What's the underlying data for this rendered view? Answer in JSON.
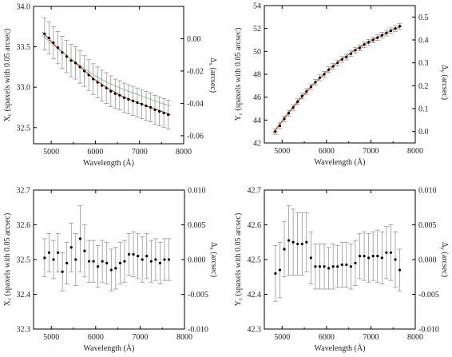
{
  "chart_data": [
    {
      "type": "scatter",
      "xlabel": "Wavelength (Å)",
      "ylabel": "Xc (spaxels with 0.05 arcsec)",
      "ylabel_main": "X",
      "ylabel_sub": "c",
      "ylabel_rest": " (spaxels with 0.05 arcsec)",
      "y2label": "Δx (arcsec)",
      "y2label_main": "Δ",
      "y2label_sub": "x",
      "y2label_rest": " (arcsec)",
      "xlim": [
        4600,
        8000
      ],
      "ylim": [
        32.3,
        34.0
      ],
      "y2lim": [
        -0.065,
        0.02
      ],
      "xticks": [
        5000,
        6000,
        7000,
        8000
      ],
      "yticks": [
        32.5,
        33.0,
        33.5,
        34.0
      ],
      "y2ticks": [
        -0.06,
        -0.04,
        -0.02,
        0.0
      ],
      "series": [
        {
          "style": "points",
          "x": [
            4850,
            4950,
            5050,
            5150,
            5250,
            5350,
            5450,
            5550,
            5650,
            5750,
            5850,
            5950,
            6050,
            6150,
            6250,
            6350,
            6450,
            6550,
            6650,
            6750,
            6850,
            6950,
            7050,
            7150,
            7250,
            7350,
            7450,
            7550,
            7650
          ],
          "y": [
            33.66,
            33.61,
            33.55,
            33.49,
            33.43,
            33.38,
            33.33,
            33.3,
            33.25,
            33.2,
            33.15,
            33.1,
            33.06,
            33.02,
            32.99,
            32.95,
            32.92,
            32.9,
            32.87,
            32.85,
            32.83,
            32.81,
            32.79,
            32.77,
            32.75,
            32.72,
            32.7,
            32.68,
            32.66
          ],
          "yerr": [
            0.2,
            0.2,
            0.2,
            0.2,
            0.2,
            0.2,
            0.2,
            0.2,
            0.2,
            0.19,
            0.19,
            0.19,
            0.19,
            0.19,
            0.19,
            0.19,
            0.18,
            0.18,
            0.18,
            0.18,
            0.18,
            0.18,
            0.18,
            0.18,
            0.18,
            0.18,
            0.18,
            0.18,
            0.18
          ]
        },
        {
          "style": "line",
          "color": "#cc2222",
          "x": [
            4800,
            5100,
            5400,
            5700,
            6000,
            6300,
            6600,
            6900,
            7200,
            7500,
            7700
          ],
          "y": [
            33.68,
            33.51,
            33.37,
            33.23,
            33.09,
            32.98,
            32.89,
            32.82,
            32.76,
            32.7,
            32.66
          ]
        },
        {
          "style": "line",
          "color": "#88cc88",
          "x": [
            4800,
            5100,
            5400,
            5700,
            6000,
            6300,
            6600,
            6900,
            7200,
            7500,
            7700
          ],
          "y": [
            33.64,
            33.5,
            33.37,
            33.25,
            33.14,
            33.05,
            32.98,
            32.92,
            32.86,
            32.8,
            32.77
          ]
        }
      ]
    },
    {
      "type": "scatter",
      "xlabel": "Wavelength (Å)",
      "ylabel": "Yc (spaxels with 0.05 arcsec)",
      "ylabel_main": "Y",
      "ylabel_sub": "c",
      "ylabel_rest": " (spaxels with 0.05 arcsec)",
      "y2label": "Δy (arcsec)",
      "y2label_main": "Δ",
      "y2label_sub": "y",
      "y2label_rest": " (arcsec)",
      "xlim": [
        4600,
        8000
      ],
      "ylim": [
        42.0,
        54.0
      ],
      "y2lim": [
        -0.05,
        0.55
      ],
      "xticks": [
        5000,
        6000,
        7000,
        8000
      ],
      "yticks": [
        42,
        44,
        46,
        48,
        50,
        52,
        54
      ],
      "y2ticks": [
        0.0,
        0.1,
        0.2,
        0.3,
        0.4,
        0.5
      ],
      "series": [
        {
          "style": "points",
          "x": [
            4850,
            4950,
            5050,
            5150,
            5250,
            5350,
            5450,
            5550,
            5650,
            5750,
            5850,
            5950,
            6050,
            6150,
            6250,
            6350,
            6450,
            6550,
            6650,
            6750,
            6850,
            6950,
            7050,
            7150,
            7250,
            7350,
            7450,
            7550,
            7650
          ],
          "y": [
            43.0,
            43.5,
            44.1,
            44.6,
            45.1,
            45.6,
            46.1,
            46.5,
            46.9,
            47.3,
            47.7,
            48.0,
            48.4,
            48.7,
            49.0,
            49.3,
            49.5,
            49.8,
            50.1,
            50.3,
            50.6,
            50.8,
            51.0,
            51.2,
            51.4,
            51.6,
            51.8,
            52.0,
            52.2
          ],
          "yerr": [
            0.25,
            0.25,
            0.25,
            0.25,
            0.25,
            0.25,
            0.25,
            0.25,
            0.25,
            0.25,
            0.25,
            0.25,
            0.25,
            0.25,
            0.25,
            0.25,
            0.25,
            0.25,
            0.25,
            0.25,
            0.25,
            0.25,
            0.25,
            0.25,
            0.25,
            0.25,
            0.25,
            0.25,
            0.25
          ]
        },
        {
          "style": "line",
          "color": "#cc3333",
          "x": [
            4800,
            5100,
            5400,
            5700,
            6000,
            6300,
            6600,
            6900,
            7200,
            7500,
            7700
          ],
          "y": [
            42.85,
            44.4,
            45.8,
            47.1,
            48.2,
            49.2,
            50.0,
            50.7,
            51.3,
            51.9,
            52.2
          ]
        },
        {
          "style": "line",
          "color": "#e8a060",
          "x": [
            4800,
            5100,
            5400,
            5700,
            6000,
            6300,
            6600,
            6900,
            7200,
            7500,
            7700
          ],
          "y": [
            42.95,
            44.5,
            45.9,
            47.15,
            48.25,
            49.25,
            50.05,
            50.75,
            51.35,
            51.95,
            52.25
          ]
        }
      ]
    },
    {
      "type": "scatter",
      "xlabel": "Wavelength (Å)",
      "ylabel": "Xc (spaxels with 0.05 arcsec)",
      "ylabel_main": "X",
      "ylabel_sub": "c",
      "ylabel_rest": " (spaxels with 0.05 arcsec)",
      "y2label": "Δx (arcsec)",
      "y2label_main": "Δ",
      "y2label_sub": "x",
      "y2label_rest": " (arcsec)",
      "xlim": [
        4600,
        8000
      ],
      "ylim": [
        32.3,
        32.7
      ],
      "y2lim": [
        -0.01,
        0.01
      ],
      "xticks": [
        5000,
        6000,
        7000,
        8000
      ],
      "yticks": [
        32.3,
        32.4,
        32.5,
        32.6,
        32.7
      ],
      "y2ticks": [
        -0.01,
        -0.005,
        0.0,
        0.005,
        0.01
      ],
      "y2tick_labels": [
        "-0.010",
        "-0.005",
        "0.000",
        "0.005",
        "0.010"
      ],
      "series": [
        {
          "style": "points",
          "x": [
            4850,
            4950,
            5050,
            5150,
            5250,
            5350,
            5450,
            5550,
            5650,
            5750,
            5850,
            5950,
            6050,
            6150,
            6250,
            6350,
            6450,
            6550,
            6650,
            6750,
            6850,
            6950,
            7050,
            7150,
            7250,
            7350,
            7450,
            7550,
            7650
          ],
          "y": [
            32.505,
            32.52,
            32.5,
            32.52,
            32.465,
            32.49,
            32.535,
            32.5,
            32.56,
            32.525,
            32.495,
            32.495,
            32.48,
            32.495,
            32.49,
            32.47,
            32.475,
            32.49,
            32.495,
            32.515,
            32.515,
            32.51,
            32.5,
            32.51,
            32.495,
            32.5,
            32.49,
            32.5,
            32.5
          ],
          "yerr": [
            0.055,
            0.055,
            0.055,
            0.055,
            0.055,
            0.06,
            0.07,
            0.075,
            0.095,
            0.075,
            0.06,
            0.06,
            0.06,
            0.06,
            0.06,
            0.06,
            0.06,
            0.06,
            0.06,
            0.06,
            0.065,
            0.065,
            0.065,
            0.065,
            0.06,
            0.06,
            0.06,
            0.06,
            0.06
          ]
        }
      ]
    },
    {
      "type": "scatter",
      "xlabel": "Wavelength (Å)",
      "ylabel": "Yc (spaxels with 0.05 arcsec)",
      "ylabel_main": "Y",
      "ylabel_sub": "c",
      "ylabel_rest": " (spaxels with 0.05 arcsec)",
      "y2label": "Δy (arcsec)",
      "y2label_main": "Δ",
      "y2label_sub": "y",
      "y2label_rest": " (arcsec)",
      "xlim": [
        4600,
        8000
      ],
      "ylim": [
        42.3,
        42.7
      ],
      "y2lim": [
        -0.01,
        0.01
      ],
      "xticks": [
        5000,
        6000,
        7000,
        8000
      ],
      "yticks": [
        42.3,
        42.4,
        42.5,
        42.6,
        42.7
      ],
      "y2ticks": [
        -0.01,
        -0.005,
        0.0,
        0.005,
        0.01
      ],
      "y2tick_labels": [
        "-0.010",
        "-0.005",
        "0.000",
        "0.005",
        "0.010"
      ],
      "series": [
        {
          "style": "points",
          "x": [
            4850,
            4950,
            5050,
            5150,
            5250,
            5350,
            5450,
            5550,
            5650,
            5750,
            5850,
            5950,
            6050,
            6150,
            6250,
            6350,
            6450,
            6550,
            6650,
            6750,
            6850,
            6950,
            7050,
            7150,
            7250,
            7350,
            7450,
            7550,
            7650
          ],
          "y": [
            42.46,
            42.47,
            42.53,
            42.555,
            42.55,
            42.545,
            42.545,
            42.55,
            42.505,
            42.48,
            42.48,
            42.48,
            42.475,
            42.48,
            42.48,
            42.485,
            42.485,
            42.48,
            42.49,
            42.51,
            42.51,
            42.505,
            42.51,
            42.51,
            42.505,
            42.52,
            42.52,
            42.5,
            42.47
          ],
          "yerr": [
            0.08,
            0.08,
            0.08,
            0.1,
            0.095,
            0.09,
            0.09,
            0.085,
            0.075,
            0.065,
            0.065,
            0.065,
            0.06,
            0.065,
            0.06,
            0.065,
            0.065,
            0.065,
            0.065,
            0.065,
            0.07,
            0.07,
            0.07,
            0.075,
            0.075,
            0.075,
            0.08,
            0.08,
            0.06
          ]
        }
      ]
    }
  ]
}
